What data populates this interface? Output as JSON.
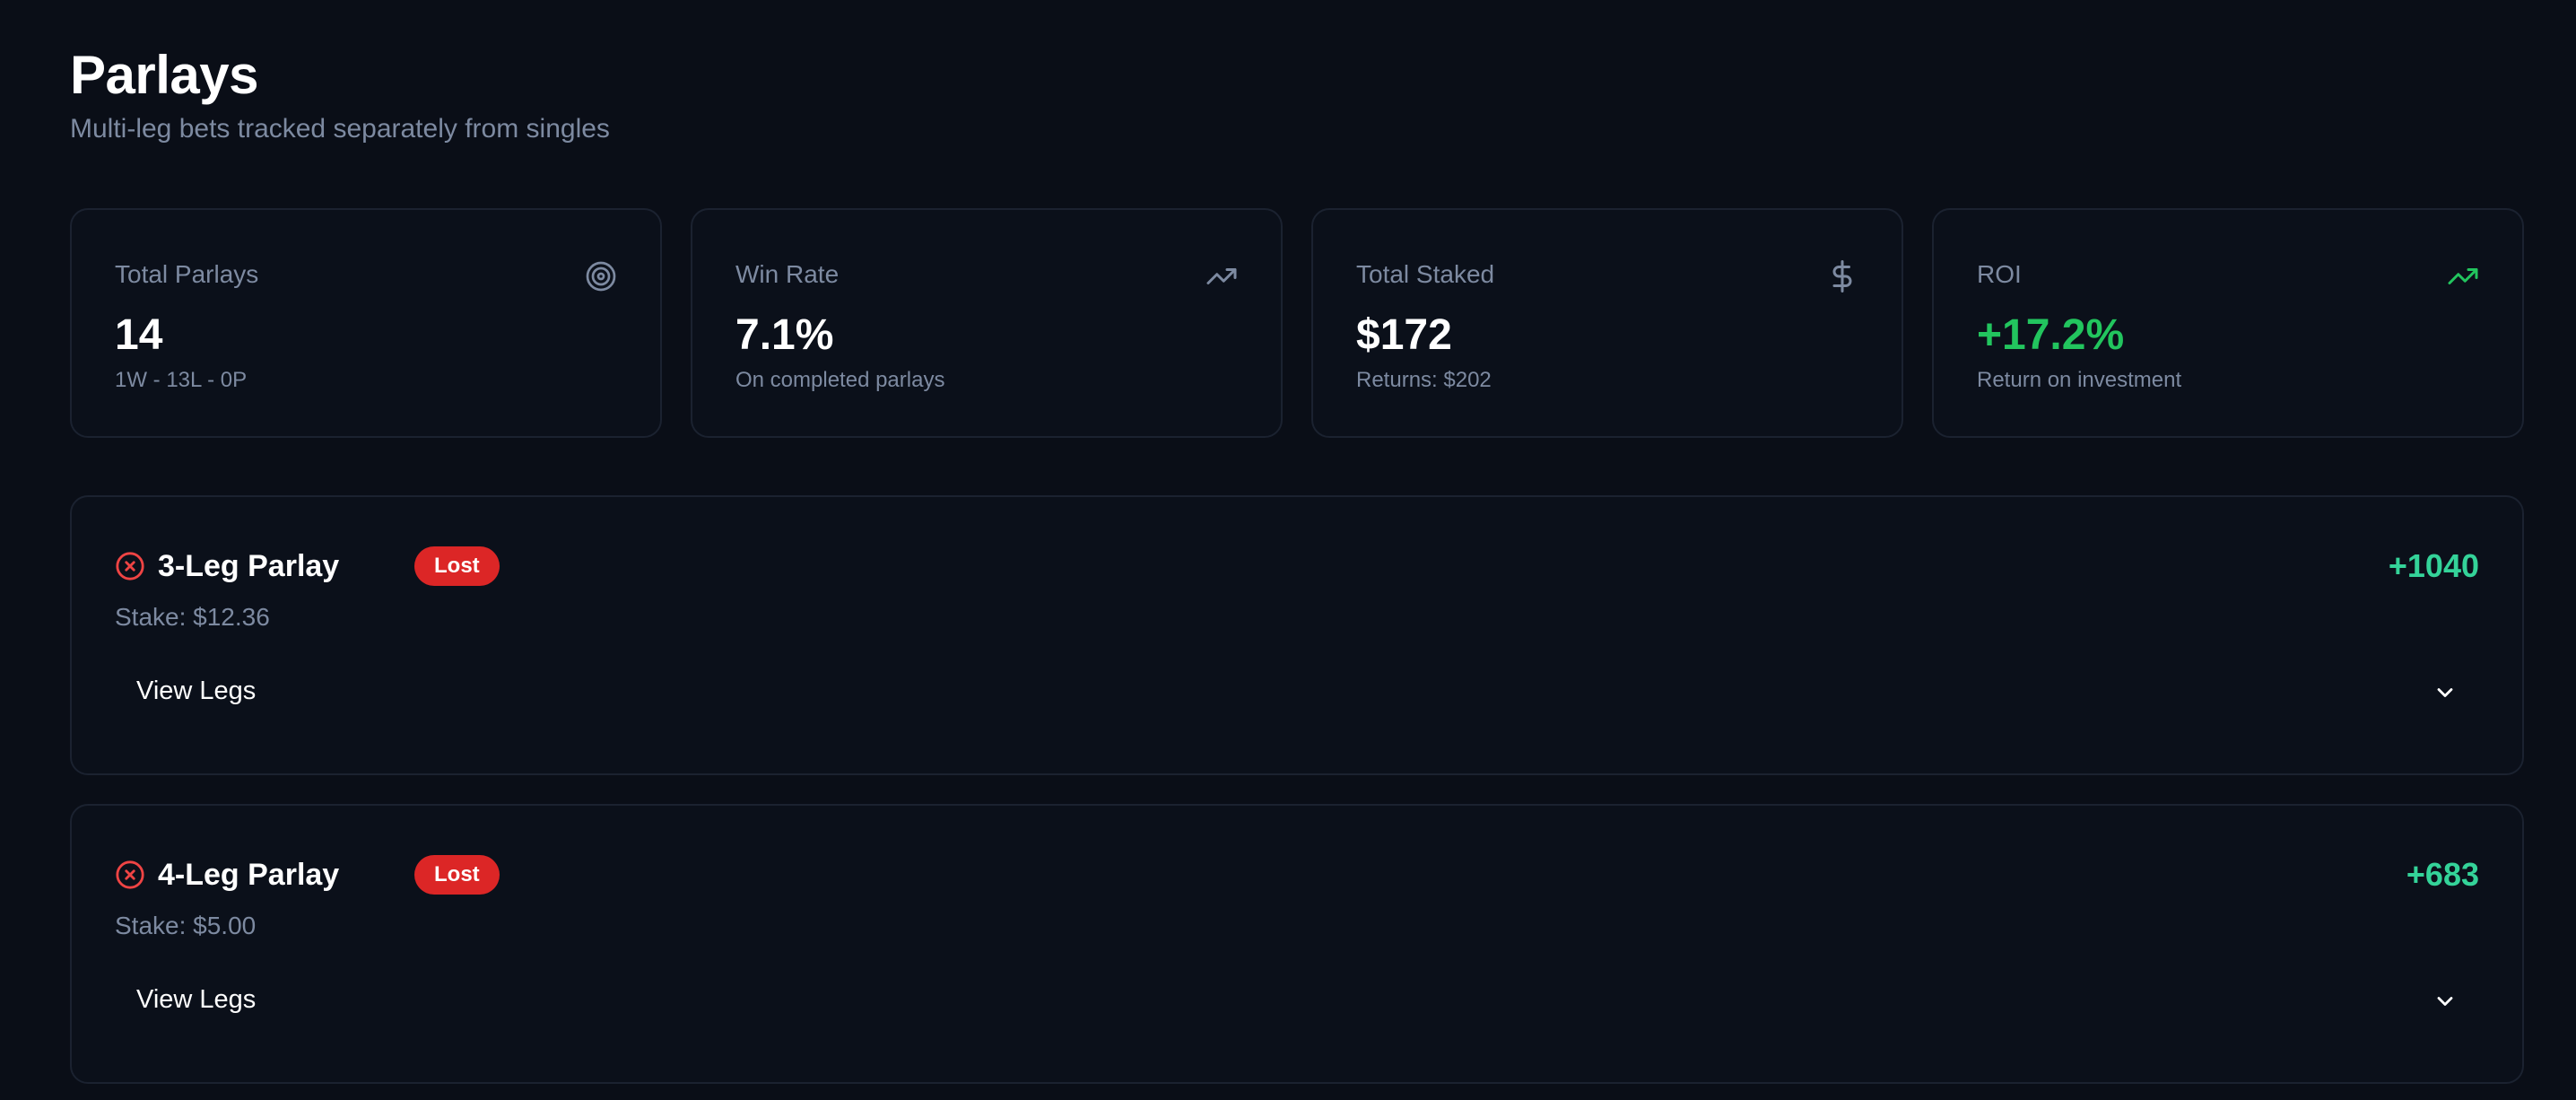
{
  "header": {
    "title": "Parlays",
    "subtitle": "Multi-leg bets tracked separately from singles"
  },
  "stats": [
    {
      "label": "Total Parlays",
      "value": "14",
      "sub": "1W - 13L - 0P",
      "icon": "target-icon"
    },
    {
      "label": "Win Rate",
      "value": "7.1%",
      "sub": "On completed parlays",
      "icon": "trending-up-icon"
    },
    {
      "label": "Total Staked",
      "value": "$172",
      "sub": "Returns: $202",
      "icon": "dollar-icon"
    },
    {
      "label": "ROI",
      "value": "+17.2%",
      "sub": "Return on investment",
      "icon": "trending-up-icon"
    }
  ],
  "parlays": [
    {
      "title": "3-Leg Parlay",
      "status": "Lost",
      "odds": "+1040",
      "stake": "Stake: $12.36",
      "toggle_label": "View Legs"
    },
    {
      "title": "4-Leg Parlay",
      "status": "Lost",
      "odds": "+683",
      "stake": "Stake: $5.00",
      "toggle_label": "View Legs"
    }
  ],
  "colors": {
    "background": "#0a0e17",
    "card_border": "#1b2230",
    "muted_text": "#7d8aa1",
    "positive": "#22c55e",
    "odds": "#34d399",
    "lost": "#dc2626"
  }
}
